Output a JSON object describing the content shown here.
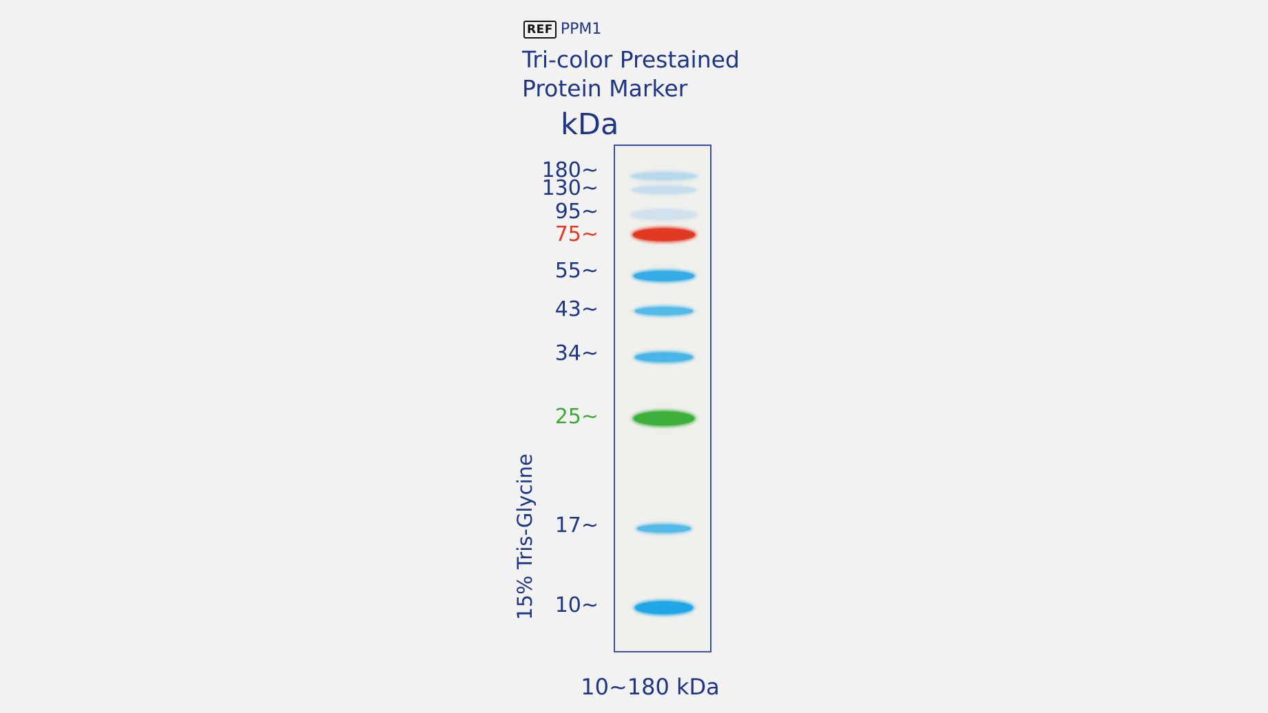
{
  "ref": {
    "symbol": "REF",
    "code": "PPM1"
  },
  "product": {
    "title_line1": "Tri-color Prestained",
    "title_line2": "Protein Marker"
  },
  "unit": "kDa",
  "gel_type": "15% Tris-Glycine",
  "range": "10~180 kDa",
  "bands": [
    {
      "label": "180~",
      "kda": 180,
      "label_color": "#1d3584",
      "band_color": "#8cc8ee",
      "intensity": 0.55
    },
    {
      "label": "130~",
      "kda": 130,
      "label_color": "#1d3584",
      "band_color": "#9fcdef",
      "intensity": 0.5
    },
    {
      "label": "95~",
      "kda": 95,
      "label_color": "#1d3584",
      "band_color": "#b3d3f0",
      "intensity": 0.5
    },
    {
      "label": "75~",
      "kda": 75,
      "label_color": "#e8351f",
      "band_color": "#e23a22",
      "intensity": 1.0
    },
    {
      "label": "55~",
      "kda": 55,
      "label_color": "#1d3584",
      "band_color": "#2aa9e6",
      "intensity": 0.95
    },
    {
      "label": "43~",
      "kda": 43,
      "label_color": "#1d3584",
      "band_color": "#37b0e8",
      "intensity": 0.85
    },
    {
      "label": "34~",
      "kda": 34,
      "label_color": "#1d3584",
      "band_color": "#36aee7",
      "intensity": 0.9
    },
    {
      "label": "25~",
      "kda": 25,
      "label_color": "#3daa35",
      "band_color": "#3cae3a",
      "intensity": 1.0
    },
    {
      "label": "17~",
      "kda": 17,
      "label_color": "#1d3584",
      "band_color": "#3ab1e8",
      "intensity": 0.85
    },
    {
      "label": "10~",
      "kda": 10,
      "label_color": "#1d3584",
      "band_color": "#1fa6e6",
      "intensity": 1.0
    }
  ]
}
